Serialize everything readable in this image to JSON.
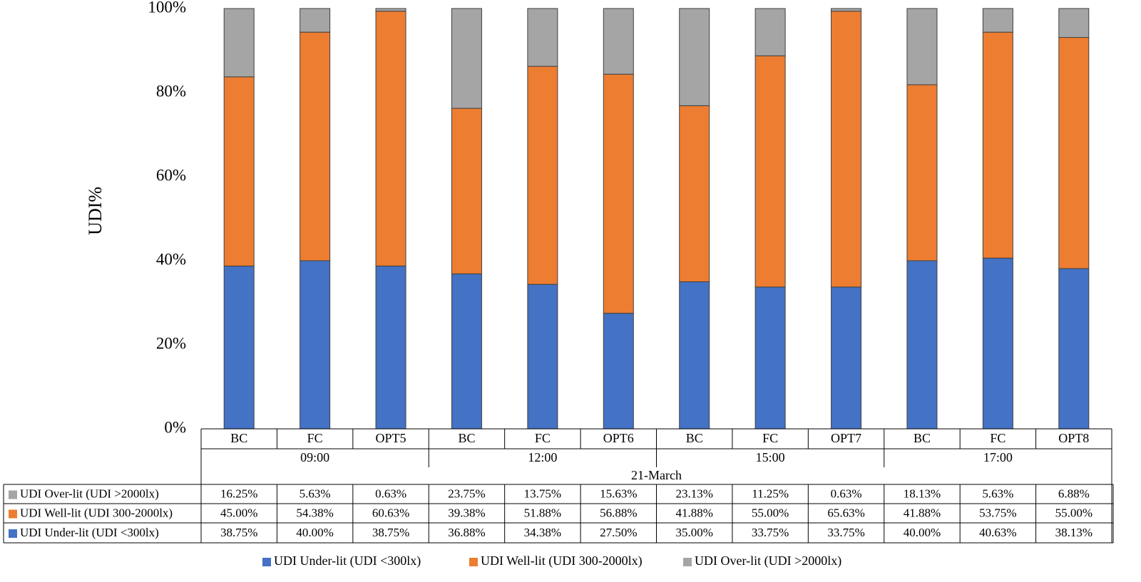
{
  "chart_data": {
    "type": "bar",
    "stacked": true,
    "ylabel": "UDI%",
    "ylim": [
      0,
      100
    ],
    "yticks": [
      "0%",
      "20%",
      "40%",
      "60%",
      "80%",
      "100%"
    ],
    "grid": false,
    "legend_position": "bottom",
    "categories": [
      "BC",
      "FC",
      "OPT5",
      "BC",
      "FC",
      "OPT6",
      "BC",
      "FC",
      "OPT7",
      "BC",
      "FC",
      "OPT8"
    ],
    "time_groups": [
      "09:00",
      "12:00",
      "15:00",
      "17:00"
    ],
    "date_group": "21-March",
    "series": [
      {
        "name": "UDI Under-lit (UDI <300lx)",
        "color": "#4472C4",
        "values": [
          38.75,
          40.0,
          38.75,
          36.88,
          34.38,
          27.5,
          35.0,
          33.75,
          33.75,
          40.0,
          40.63,
          38.13
        ],
        "labels": [
          "38.75%",
          "40.00%",
          "38.75%",
          "36.88%",
          "34.38%",
          "27.50%",
          "35.00%",
          "33.75%",
          "33.75%",
          "40.00%",
          "40.63%",
          "38.13%"
        ]
      },
      {
        "name": "UDI Well-lit (UDI 300-2000lx)",
        "color": "#ED7D31",
        "values": [
          45.0,
          54.38,
          60.63,
          39.38,
          51.88,
          56.88,
          41.88,
          55.0,
          65.63,
          41.88,
          53.75,
          55.0
        ],
        "labels": [
          "45.00%",
          "54.38%",
          "60.63%",
          "39.38%",
          "51.88%",
          "56.88%",
          "41.88%",
          "55.00%",
          "65.63%",
          "41.88%",
          "53.75%",
          "55.00%"
        ]
      },
      {
        "name": "UDI Over-lit (UDI >2000lx)",
        "color": "#A5A5A5",
        "values": [
          16.25,
          5.63,
          0.63,
          23.75,
          13.75,
          15.63,
          23.13,
          11.25,
          0.63,
          18.13,
          5.63,
          6.88
        ],
        "labels": [
          "16.25%",
          "5.63%",
          "0.63%",
          "23.75%",
          "13.75%",
          "15.63%",
          "23.13%",
          "11.25%",
          "0.63%",
          "18.13%",
          "5.63%",
          "6.88%"
        ]
      }
    ],
    "table_row_order": [
      2,
      1,
      0
    ],
    "legend_order": [
      0,
      1,
      2
    ]
  }
}
